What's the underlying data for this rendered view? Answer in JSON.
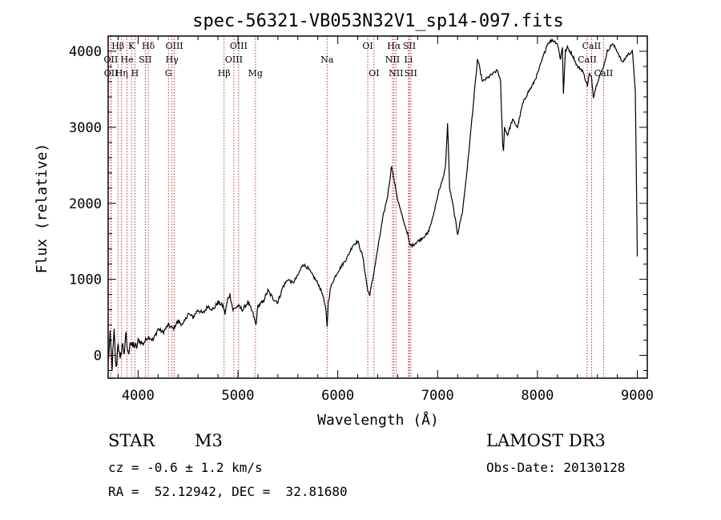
{
  "chart_data": {
    "type": "line",
    "title": "spec-56321-VB053N32V1_sp14-097.fits",
    "xlabel": "Wavelength (Å)",
    "ylabel": "Flux (relative)",
    "xlim": [
      3700,
      9100
    ],
    "ylim": [
      -300,
      4200
    ],
    "xticks": [
      4000,
      5000,
      6000,
      7000,
      8000,
      9000
    ],
    "yticks": [
      0,
      1000,
      2000,
      3000,
      4000
    ],
    "grid": false,
    "series": [
      {
        "name": "spectrum",
        "x": [
          3700,
          3720,
          3740,
          3760,
          3780,
          3800,
          3820,
          3840,
          3860,
          3880,
          3900,
          3920,
          3940,
          3960,
          3980,
          4000,
          4050,
          4100,
          4150,
          4200,
          4250,
          4300,
          4350,
          4400,
          4450,
          4500,
          4550,
          4600,
          4650,
          4700,
          4750,
          4800,
          4850,
          4870,
          4900,
          4920,
          4950,
          5000,
          5050,
          5100,
          5150,
          5180,
          5200,
          5250,
          5300,
          5350,
          5400,
          5450,
          5500,
          5550,
          5600,
          5650,
          5700,
          5750,
          5800,
          5850,
          5880,
          5893,
          5905,
          5930,
          5960,
          6000,
          6050,
          6100,
          6150,
          6200,
          6250,
          6300,
          6320,
          6350,
          6400,
          6450,
          6500,
          6520,
          6540,
          6563,
          6580,
          6600,
          6650,
          6700,
          6720,
          6750,
          6800,
          6850,
          6900,
          6950,
          7000,
          7020,
          7050,
          7080,
          7100,
          7120,
          7150,
          7200,
          7250,
          7300,
          7350,
          7400,
          7450,
          7500,
          7550,
          7600,
          7630,
          7650,
          7660,
          7670,
          7700,
          7750,
          7800,
          7850,
          7900,
          7950,
          8000,
          8050,
          8100,
          8150,
          8200,
          8230,
          8250,
          8260,
          8280,
          8300,
          8350,
          8400,
          8450,
          8500,
          8520,
          8542,
          8560,
          8600,
          8662,
          8700,
          8750,
          8800,
          8850,
          8900,
          8950,
          8980,
          9000
        ],
        "y": [
          -100,
          250,
          -150,
          300,
          -200,
          200,
          -100,
          150,
          50,
          250,
          0,
          200,
          100,
          150,
          80,
          200,
          150,
          250,
          200,
          350,
          300,
          400,
          350,
          450,
          400,
          550,
          500,
          600,
          550,
          650,
          600,
          700,
          650,
          550,
          750,
          800,
          600,
          650,
          600,
          700,
          550,
          400,
          650,
          700,
          850,
          750,
          700,
          900,
          1000,
          950,
          1050,
          1200,
          1150,
          1050,
          950,
          800,
          600,
          380,
          700,
          900,
          1000,
          1100,
          1200,
          1300,
          1450,
          1500,
          1300,
          850,
          800,
          1000,
          1400,
          1800,
          2100,
          2300,
          2500,
          2300,
          2200,
          2050,
          1800,
          1600,
          1450,
          1450,
          1500,
          1550,
          1600,
          1800,
          2100,
          2200,
          2300,
          2500,
          3050,
          2200,
          2000,
          1600,
          1900,
          2500,
          3200,
          3900,
          3600,
          3650,
          3700,
          3750,
          3600,
          2800,
          2700,
          3000,
          2900,
          3100,
          3000,
          3300,
          3450,
          3550,
          3700,
          3900,
          4100,
          4150,
          4100,
          3900,
          4050,
          3450,
          4000,
          4050,
          3950,
          3800,
          3750,
          3550,
          3700,
          3650,
          3400,
          3600,
          3800,
          4000,
          4100,
          4000,
          3850,
          3950,
          4000,
          3500,
          1300
        ]
      }
    ],
    "lines": [
      {
        "label": "Hβ",
        "x": 3798,
        "row": 0
      },
      {
        "label": "K",
        "x": 3934,
        "row": 0
      },
      {
        "label": "Hδ",
        "x": 4102,
        "row": 0
      },
      {
        "label": "OIII",
        "x": 4363,
        "row": 0
      },
      {
        "label": "OIII",
        "x": 5007,
        "row": 0
      },
      {
        "label": "OI",
        "x": 6300,
        "row": 0
      },
      {
        "label": "Hα",
        "x": 6563,
        "row": 0
      },
      {
        "label": "SII",
        "x": 6717,
        "row": 0
      },
      {
        "label": "CaII",
        "x": 8542,
        "row": 0
      },
      {
        "label": "OII",
        "x": 3727,
        "row": 1
      },
      {
        "label": "He",
        "x": 3889,
        "row": 1
      },
      {
        "label": "SII",
        "x": 4072,
        "row": 1
      },
      {
        "label": "Hγ",
        "x": 4340,
        "row": 1
      },
      {
        "label": "OIII",
        "x": 4959,
        "row": 1
      },
      {
        "label": "Na",
        "x": 5893,
        "row": 1
      },
      {
        "label": "NII",
        "x": 6548,
        "row": 1
      },
      {
        "label": "Li",
        "x": 6708,
        "row": 1
      },
      {
        "label": "CaII",
        "x": 8498,
        "row": 1
      },
      {
        "label": "OII",
        "x": 3729,
        "row": 2
      },
      {
        "label": "Hη",
        "x": 3835,
        "row": 2
      },
      {
        "label": "H",
        "x": 3968,
        "row": 2
      },
      {
        "label": "G",
        "x": 4304,
        "row": 2
      },
      {
        "label": "Hβ",
        "x": 4861,
        "row": 2
      },
      {
        "label": "Mg",
        "x": 5175,
        "row": 2
      },
      {
        "label": "OI",
        "x": 6363,
        "row": 2
      },
      {
        "label": "NII",
        "x": 6583,
        "row": 2
      },
      {
        "label": "SII",
        "x": 6731,
        "row": 2
      },
      {
        "label": "CaII",
        "x": 8662,
        "row": 2
      }
    ],
    "line_color": "#b22222"
  },
  "footer": {
    "object_class": "STAR",
    "subclass": "M3",
    "survey": "LAMOST DR3",
    "cz": "cz = -0.6 ± 1.2 km/s",
    "obs_date": "Obs-Date: 20130128",
    "coords": "RA =  52.12942, DEC =  32.81680"
  }
}
